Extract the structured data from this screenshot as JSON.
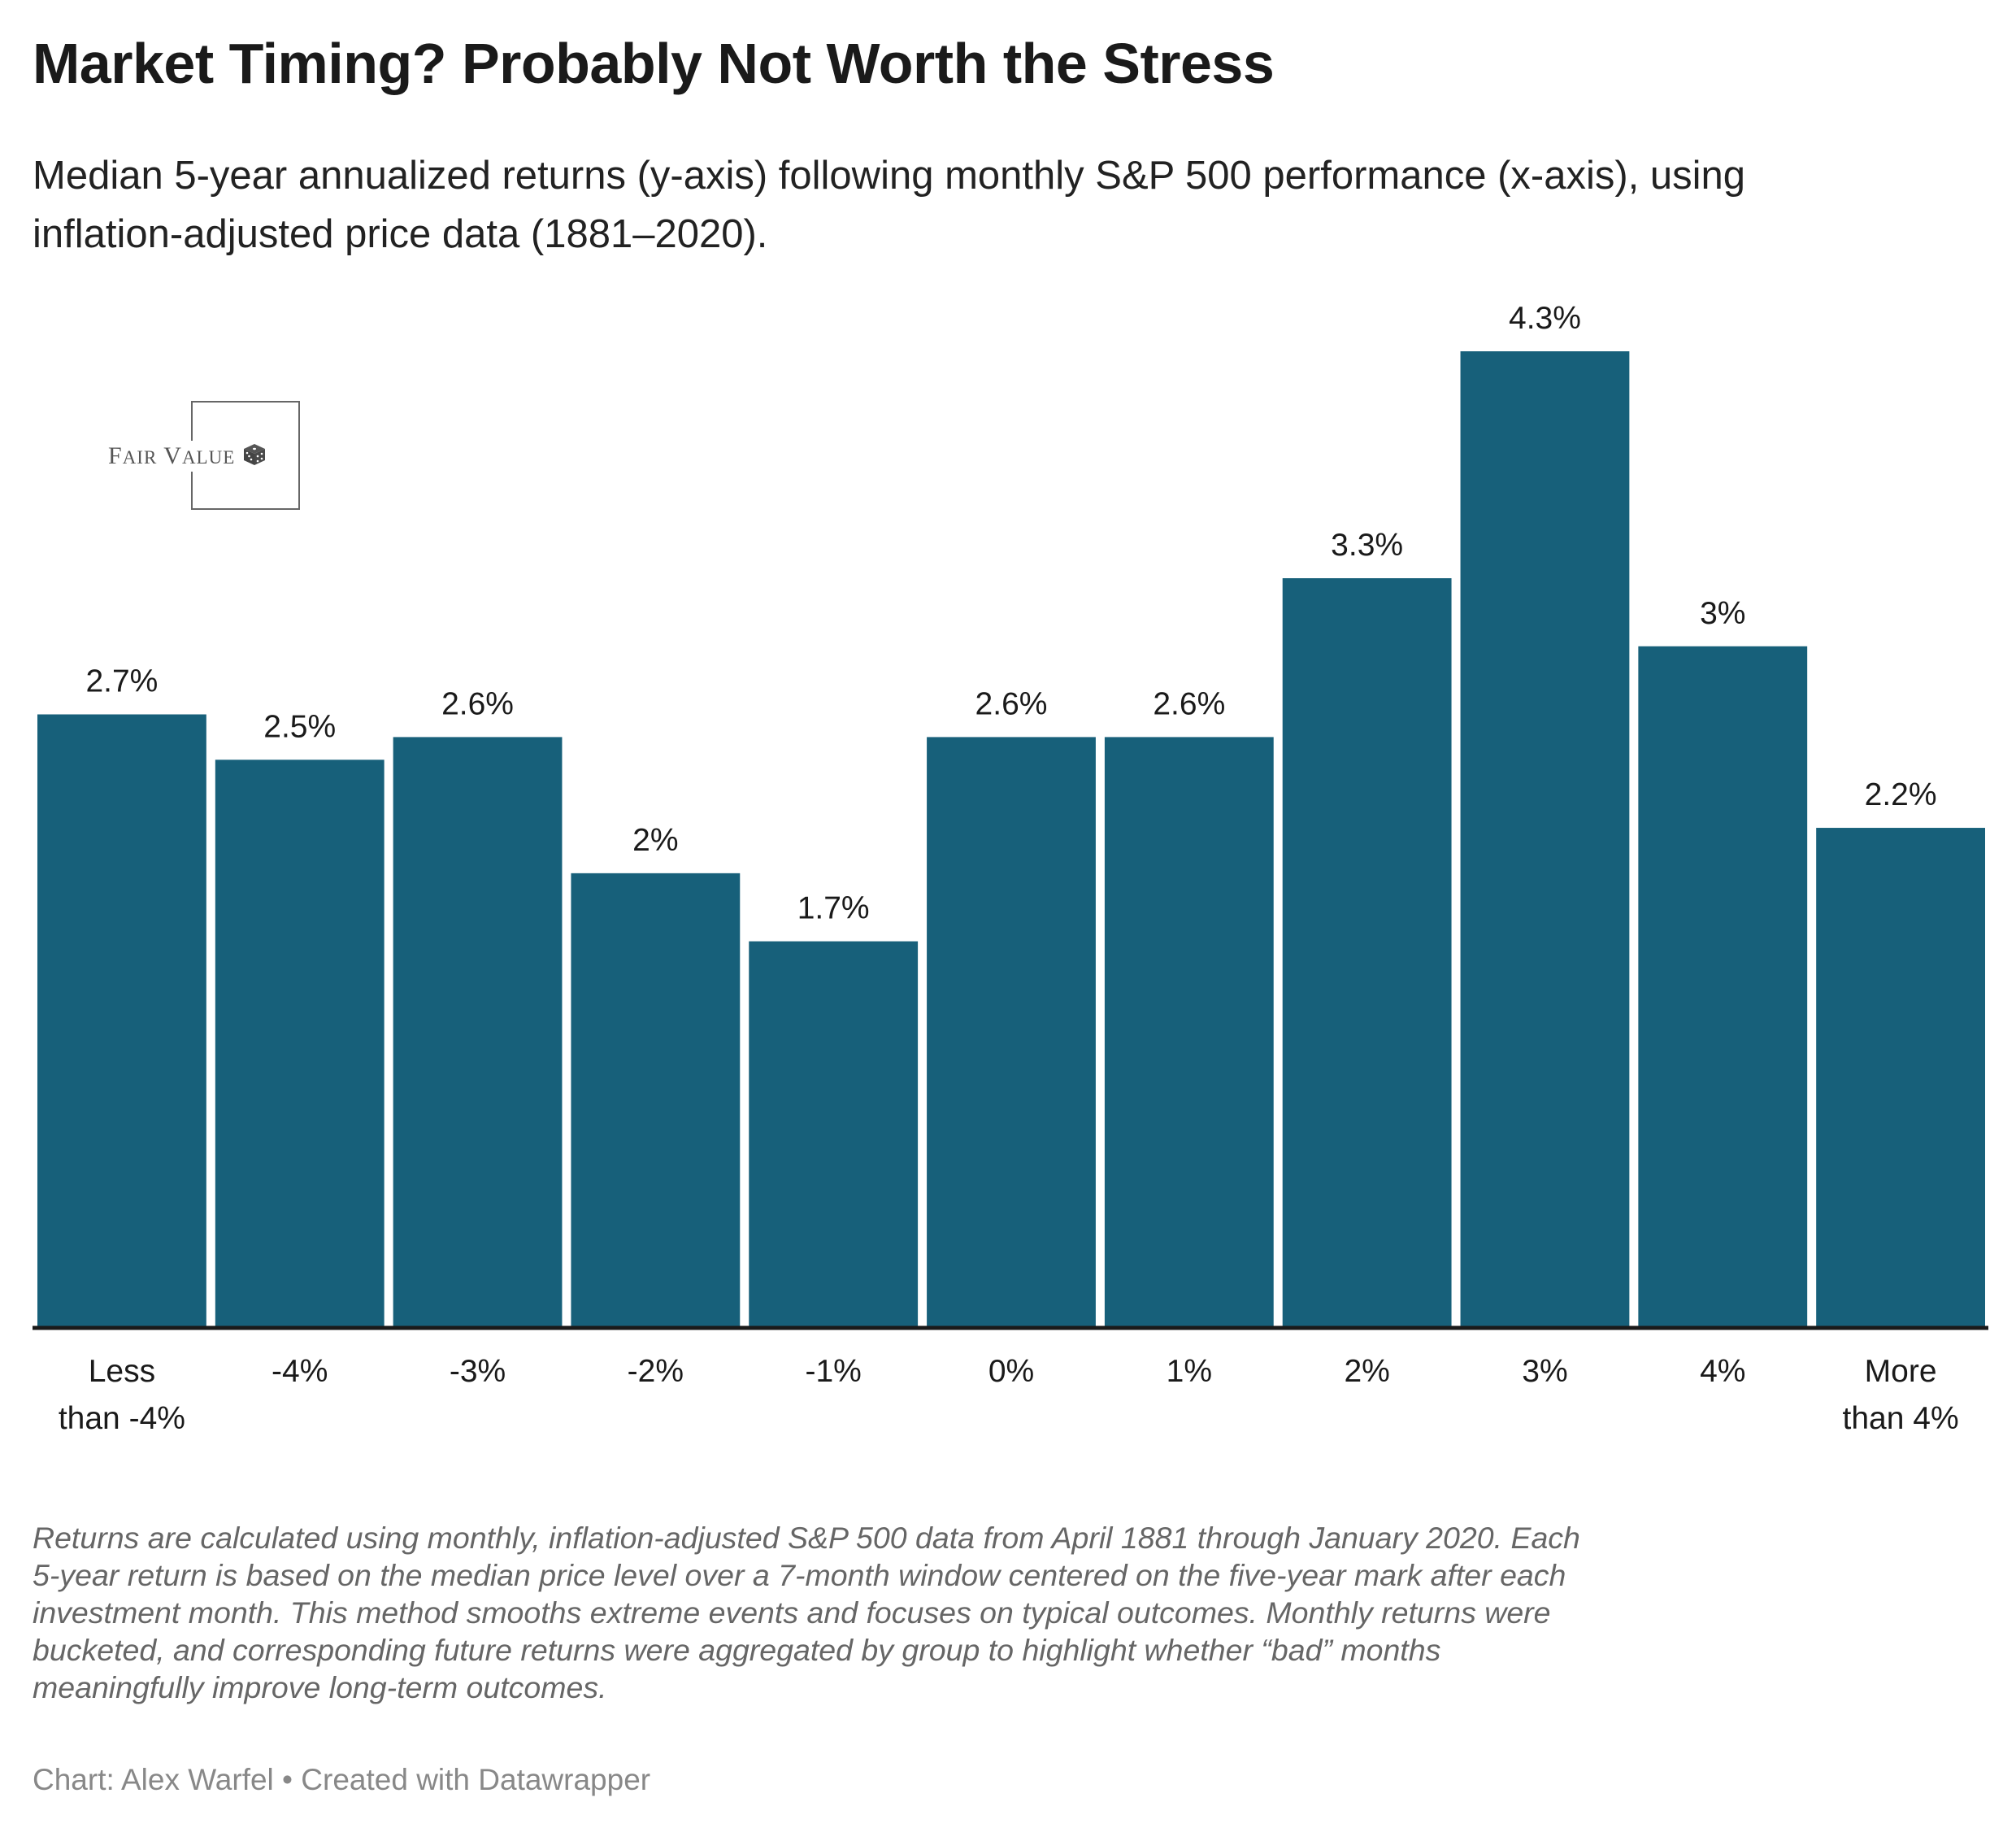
{
  "title": "Market Timing? Probably Not Worth the Stress",
  "subtitle_lines": [
    "Median 5-year annualized returns (y-axis) following monthly S&P 500 performance (x-axis), using",
    "inflation-adjusted price data (1881–2020)."
  ],
  "logo": {
    "text": "Fair Value",
    "icon": "dice-icon"
  },
  "colors": {
    "bar": "#17607a",
    "axis": "#1a1a1a"
  },
  "chart_data": {
    "type": "bar",
    "title": "Market Timing? Probably Not Worth the Stress",
    "xlabel": "Monthly S&P 500 performance",
    "ylabel": "Median 5-year annualized return",
    "categories": [
      [
        "Less",
        "than -4%"
      ],
      [
        "-4%"
      ],
      [
        "-3%"
      ],
      [
        "-2%"
      ],
      [
        "-1%"
      ],
      [
        "0%"
      ],
      [
        "1%"
      ],
      [
        "2%"
      ],
      [
        "3%"
      ],
      [
        "4%"
      ],
      [
        "More",
        "than 4%"
      ]
    ],
    "values": [
      2.7,
      2.5,
      2.6,
      2.0,
      1.7,
      2.6,
      2.6,
      3.3,
      4.3,
      3.0,
      2.2
    ],
    "value_labels": [
      "2.7%",
      "2.5%",
      "2.6%",
      "2%",
      "1.7%",
      "2.6%",
      "2.6%",
      "3.3%",
      "4.3%",
      "3%",
      "2.2%"
    ],
    "ylim": [
      0,
      4.3
    ],
    "grid": false
  },
  "notes_lines": [
    "Returns are calculated using monthly, inflation-adjusted S&P 500 data from April 1881 through January 2020. Each",
    "5-year return is based on the median price level over a 7-month window centered on the five-year mark after each",
    "investment month. This method smooths extreme events and focuses on typical outcomes. Monthly returns were",
    "bucketed, and corresponding future returns were aggregated by group to highlight whether “bad” months",
    "meaningfully improve long-term outcomes."
  ],
  "credit": "Chart: Alex Warfel • Created with Datawrapper"
}
